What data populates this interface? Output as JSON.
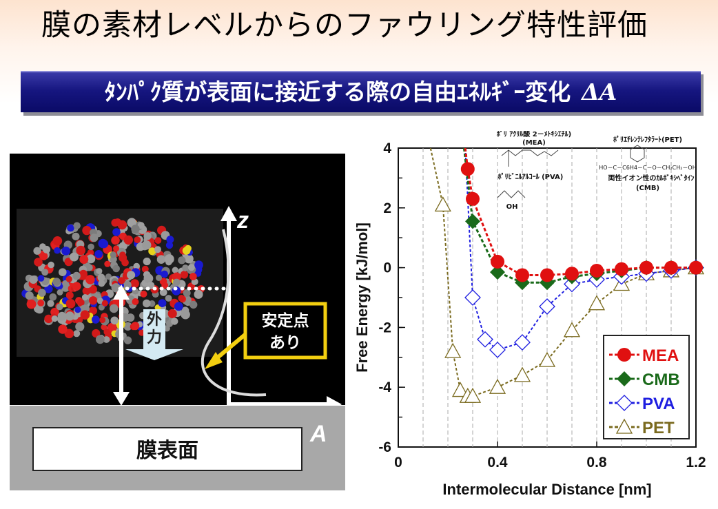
{
  "title": "膜の素材レベルからのファウリング特性評価",
  "banner": {
    "text": "ﾀﾝﾊﾟｸ質が表面に接近する際の自由ｴﾈﾙｷﾞｰ変化",
    "symbol": "ΔA"
  },
  "diagram": {
    "axis_z": "z",
    "axis_a": "A",
    "force_label": "外\n力",
    "stable_label": "安定点\nあり",
    "surface_label": "膜表面"
  },
  "colors": {
    "MEA": "#e01010",
    "CMB": "#1a6a1a",
    "PVA": "#1e1ee0",
    "PET": "#7a6a1e",
    "banner": "#161680"
  },
  "chart_data": {
    "type": "line",
    "xlabel": "Intermolecular Distance [nm]",
    "ylabel": "Free Energy [kJ/mol]",
    "xlim": [
      0,
      1.2
    ],
    "ylim": [
      -6,
      4
    ],
    "xticks": [
      "0",
      "0.4",
      "0.8",
      "1.2"
    ],
    "yticks": [
      "4",
      "2",
      "0",
      "-2",
      "-4",
      "-6"
    ],
    "legend_position": "bottom-right",
    "grid": "dashed vertical gridlines",
    "series": [
      {
        "name": "MEA",
        "marker": "circle",
        "points": [
          [
            0.28,
            3.3
          ],
          [
            0.3,
            2.3
          ],
          [
            0.4,
            0.2
          ],
          [
            0.5,
            -0.25
          ],
          [
            0.6,
            -0.25
          ],
          [
            0.7,
            -0.2
          ],
          [
            0.8,
            -0.1
          ],
          [
            0.9,
            -0.05
          ],
          [
            1.0,
            0.0
          ],
          [
            1.1,
            0.0
          ],
          [
            1.2,
            0.0
          ]
        ]
      },
      {
        "name": "CMB",
        "marker": "diamond",
        "points": [
          [
            0.3,
            1.55
          ],
          [
            0.4,
            -0.15
          ],
          [
            0.5,
            -0.5
          ],
          [
            0.6,
            -0.5
          ],
          [
            0.7,
            -0.3
          ],
          [
            0.8,
            -0.2
          ],
          [
            0.9,
            -0.1
          ],
          [
            1.0,
            0.0
          ],
          [
            1.1,
            0.0
          ],
          [
            1.2,
            0.0
          ]
        ]
      },
      {
        "name": "PVA",
        "marker": "open-diamond",
        "points": [
          [
            0.3,
            -1.0
          ],
          [
            0.35,
            -2.4
          ],
          [
            0.4,
            -2.75
          ],
          [
            0.5,
            -2.5
          ],
          [
            0.6,
            -1.3
          ],
          [
            0.7,
            -0.55
          ],
          [
            0.8,
            -0.4
          ],
          [
            0.9,
            -0.3
          ],
          [
            1.0,
            -0.2
          ],
          [
            1.1,
            -0.1
          ],
          [
            1.2,
            0.0
          ]
        ]
      },
      {
        "name": "PET",
        "marker": "open-triangle",
        "points": [
          [
            0.18,
            2.1
          ],
          [
            0.22,
            -2.8
          ],
          [
            0.25,
            -4.1
          ],
          [
            0.28,
            -4.3
          ],
          [
            0.3,
            -4.3
          ],
          [
            0.4,
            -4.0
          ],
          [
            0.5,
            -3.6
          ],
          [
            0.6,
            -3.1
          ],
          [
            0.7,
            -2.1
          ],
          [
            0.8,
            -1.2
          ],
          [
            0.9,
            -0.55
          ],
          [
            1.0,
            -0.2
          ],
          [
            1.1,
            -0.1
          ],
          [
            1.2,
            0.0
          ]
        ]
      }
    ],
    "annotations": [
      "ﾎﾟﾘ ｱｸﾘﾙ酸 2－ﾒﾄｷｼｴﾁﾙ)",
      "(MEA)",
      "ﾎﾟﾘﾋﾞﾆﾙｱﾙｺｰﾙ (PVA)",
      "OH",
      "ﾎﾟﾘｴﾁﾚﾝﾃﾚﾌﾀﾗｰﾄ(PET)",
      "HO－C－C6H4－C－O－CH₂CH₂－OH",
      "両性イオン性のｶﾙﾎﾞｷｼﾍﾞﾀｲﾝ",
      "(CMB)"
    ]
  }
}
